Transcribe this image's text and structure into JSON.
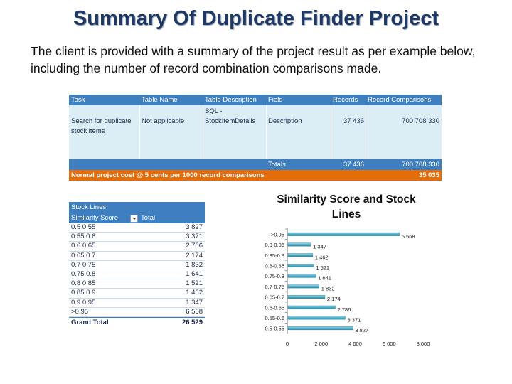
{
  "slide": {
    "title": "Summary Of Duplicate Finder Project",
    "intro": "The client is provided with a summary of the project result as per example below, including the number of record combination comparisons made."
  },
  "summary_table": {
    "headers": {
      "task": "Task",
      "table_name": "Table Name",
      "table_description": "Table Description",
      "field": "Field",
      "records": "Records",
      "record_comparisons": "Record Comparisons"
    },
    "row": {
      "task_line1": "Search for duplicate",
      "task_line2": "stock items",
      "table_name": "Not applicable",
      "table_description_line1": "SQL -",
      "table_description_line2": "StockItemDetails",
      "field": "Description",
      "records": "37 436",
      "record_comparisons": "700 708 330"
    },
    "totals": {
      "label": "Totals",
      "records": "37 436",
      "record_comparisons": "700 708 330"
    },
    "cost": {
      "label": "Normal project cost @ 5 cents per 1000 record comparisons",
      "value": "35 035"
    }
  },
  "pivot_table": {
    "title": "Stock Lines",
    "col1": "Similarity Score",
    "col2": "Total",
    "rows": [
      {
        "score": "0.5  0.55",
        "total": "3 827"
      },
      {
        "score": "0.55  0.6",
        "total": "3 371"
      },
      {
        "score": "0.6  0.65",
        "total": "2 786"
      },
      {
        "score": "0.65  0.7",
        "total": "2 174"
      },
      {
        "score": "0.7  0.75",
        "total": "1 832"
      },
      {
        "score": "0.75  0.8",
        "total": "1 641"
      },
      {
        "score": "0.8  0.85",
        "total": "1 521"
      },
      {
        "score": "0.85  0.9",
        "total": "1 462"
      },
      {
        "score": "0.9  0.95",
        "total": "1 347"
      },
      {
        "score": ">0.95",
        "total": "6 568"
      }
    ],
    "grand_total": {
      "label": "Grand Total",
      "value": "26 529"
    }
  },
  "chart_data": {
    "type": "bar",
    "orientation": "horizontal",
    "title_line1": "Similarity Score and Stock",
    "title_line2": "Lines",
    "categories": [
      ">0.95",
      "0.9-0.95",
      "0.85-0.9",
      "0.8-0.85",
      "0.75-0.8",
      "0.7-0.75",
      "0.65-0.7",
      "0.6-0.65",
      "0.55-0.6",
      "0.5-0.55"
    ],
    "values": [
      6568,
      1347,
      1462,
      1521,
      1641,
      1832,
      2174,
      2786,
      3371,
      3827
    ],
    "data_labels": [
      "6 568",
      "1 347",
      "1 462",
      "1 521",
      "1 641",
      "1 832",
      "2 174",
      "2 786",
      "3 371",
      "3 827"
    ],
    "xlim": [
      0,
      8000
    ],
    "xticks": [
      0,
      2000,
      4000,
      6000,
      8000
    ],
    "xtick_labels": [
      "0",
      "2 000",
      "4 000",
      "6 000",
      "8 000"
    ],
    "bar_color": "#4bacc6",
    "grid": false,
    "legend": "none"
  }
}
